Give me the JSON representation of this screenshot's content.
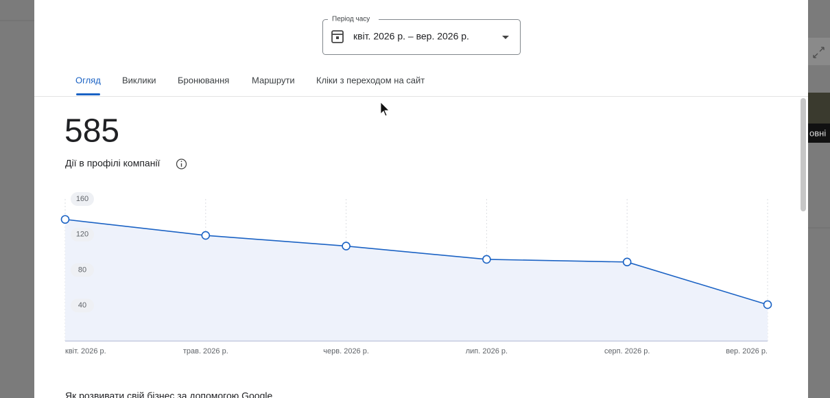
{
  "period_picker": {
    "label": "Період часу",
    "value": "квіт. 2026 р. – вер. 2026 р."
  },
  "tabs": [
    "Огляд",
    "Виклики",
    "Бронювання",
    "Маршрути",
    "Кліки з переходом на сайт"
  ],
  "summary": {
    "total": 585,
    "label": "Дії в профілі компанії"
  },
  "chart_data": {
    "type": "line",
    "categories": [
      "квіт. 2026 р.",
      "трав. 2026 р.",
      "черв. 2026 р.",
      "лип. 2026 р.",
      "серп. 2026 р.",
      "вер. 2026 р."
    ],
    "values": [
      137,
      119,
      107,
      92,
      89,
      41
    ],
    "color": "#1a62c4",
    "ylim": [
      0,
      160
    ],
    "yticks": [
      40,
      80,
      120,
      160
    ],
    "grid": true
  },
  "section_title": "Як розвивати свій бізнес за допомогою Google",
  "background_fragment": "овні"
}
